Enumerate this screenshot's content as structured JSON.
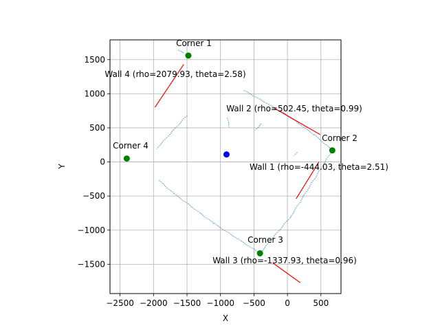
{
  "chart_data": {
    "type": "scatter",
    "xlabel": "X",
    "ylabel": "Y",
    "xlim": [
      -2650,
      800
    ],
    "ylim": [
      -1930,
      1790
    ],
    "xticks": [
      -2500,
      -2000,
      -1500,
      -1000,
      -500,
      0,
      500
    ],
    "yticks": [
      -1500,
      -1000,
      -500,
      0,
      500,
      1000,
      1500
    ],
    "xtick_labels": [
      "−2500",
      "−2000",
      "−1500",
      "−1000",
      "−500",
      "0",
      "500"
    ],
    "ytick_labels": [
      "−1500",
      "−1000",
      "−500",
      "0",
      "500",
      "1000",
      "1500"
    ],
    "grid": true,
    "scan_points_color": "#1f77b4",
    "scan_segments": [
      [
        [
          -1950,
          200
        ],
        [
          -1500,
          680
        ]
      ],
      [
        [
          -1630,
          1640
        ],
        [
          -1560,
          1600
        ]
      ],
      [
        [
          -650,
          1050
        ],
        [
          -200,
          800
        ]
      ],
      [
        [
          -100,
          750
        ],
        [
          400,
          400
        ]
      ],
      [
        [
          400,
          400
        ],
        [
          670,
          170
        ]
      ],
      [
        [
          -900,
          650
        ],
        [
          -870,
          520
        ]
      ],
      [
        [
          -480,
          470
        ],
        [
          -390,
          560
        ]
      ],
      [
        [
          -1920,
          -270
        ],
        [
          -1700,
          -460
        ]
      ],
      [
        [
          -1700,
          -460
        ],
        [
          -1100,
          -900
        ]
      ],
      [
        [
          -1100,
          -900
        ],
        [
          -410,
          -1340
        ]
      ],
      [
        [
          -410,
          -1340
        ],
        [
          50,
          -800
        ]
      ],
      [
        [
          50,
          -800
        ],
        [
          670,
          170
        ]
      ],
      [
        [
          100,
          100
        ],
        [
          140,
          140
        ]
      ]
    ],
    "walls": [
      {
        "label": "Wall 1 (rho=-444.03, theta=2.51)",
        "line": [
          [
            130,
            -540
          ],
          [
            470,
            0
          ]
        ]
      },
      {
        "label": "Wall 2 (rho=502.45, theta=0.99)",
        "line": [
          [
            -200,
            790
          ],
          [
            490,
            400
          ]
        ]
      },
      {
        "label": "Wall 3 (rho=-1337.93, theta=0.96)",
        "line": [
          [
            -220,
            -1480
          ],
          [
            190,
            -1770
          ]
        ]
      },
      {
        "label": "Wall 4 (rho=2079.93, theta=2.58)",
        "line": [
          [
            -1980,
            800
          ],
          [
            -1550,
            1430
          ]
        ]
      }
    ],
    "wall_color": "#ff0000",
    "corners": [
      {
        "label": "Corner 1",
        "x": -1480,
        "y": 1560
      },
      {
        "label": "Corner 2",
        "x": 670,
        "y": 170
      },
      {
        "label": "Corner 3",
        "x": -410,
        "y": -1340
      },
      {
        "label": "Corner 4",
        "x": -2400,
        "y": 50
      }
    ],
    "corner_color": "#008000",
    "robot": {
      "x": -910,
      "y": 110
    },
    "robot_color": "#0000ff"
  }
}
